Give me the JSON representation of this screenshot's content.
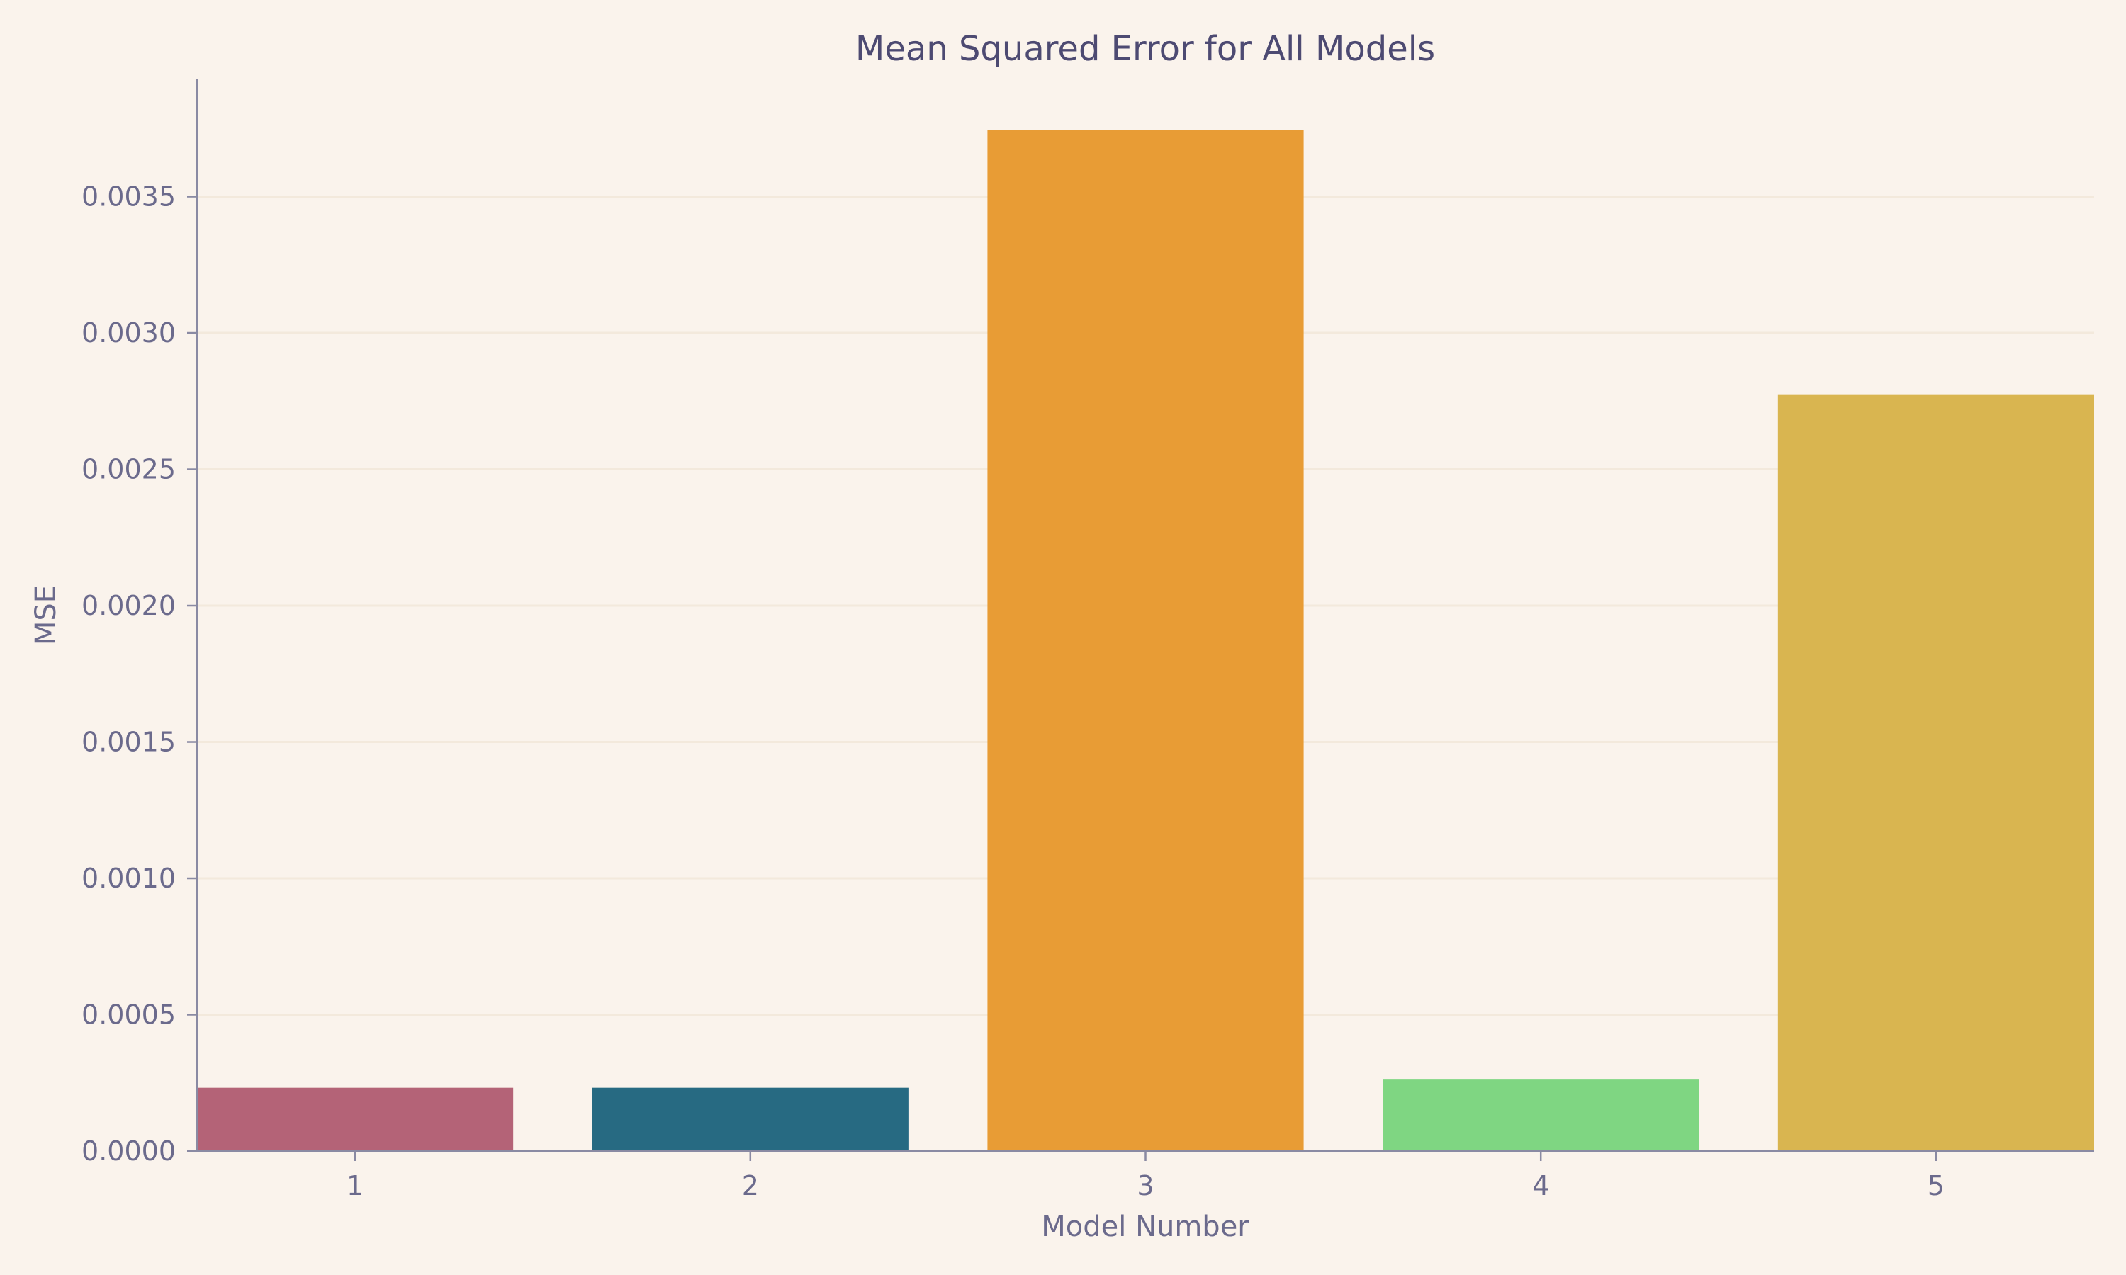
{
  "chart_data": {
    "type": "bar",
    "title": "Mean Squared Error for All Models",
    "xlabel": "Model Number",
    "ylabel": "MSE",
    "categories": [
      "1",
      "2",
      "3",
      "4",
      "5"
    ],
    "values": [
      0.000232,
      0.000232,
      0.003745,
      0.000262,
      0.002775
    ],
    "colors": [
      "#b46377",
      "#276a82",
      "#e89c35",
      "#7fd682",
      "#d9b550"
    ],
    "ylim": [
      0,
      0.00393
    ],
    "yticks": [
      0,
      0.0005,
      0.001,
      0.0015,
      0.002,
      0.0025,
      0.003,
      0.0035
    ],
    "ytick_labels": [
      "0.0000",
      "0.0005",
      "0.0010",
      "0.0015",
      "0.0020",
      "0.0025",
      "0.0030",
      "0.0035"
    ],
    "grid": "horizontal",
    "legend": "none"
  },
  "theme": {
    "background": "#faf3ec",
    "axis_color": "#8a8aa3",
    "grid_color": "#f3e9dc",
    "text_color": "#6b6a8c",
    "title_color": "#4d4a72"
  }
}
